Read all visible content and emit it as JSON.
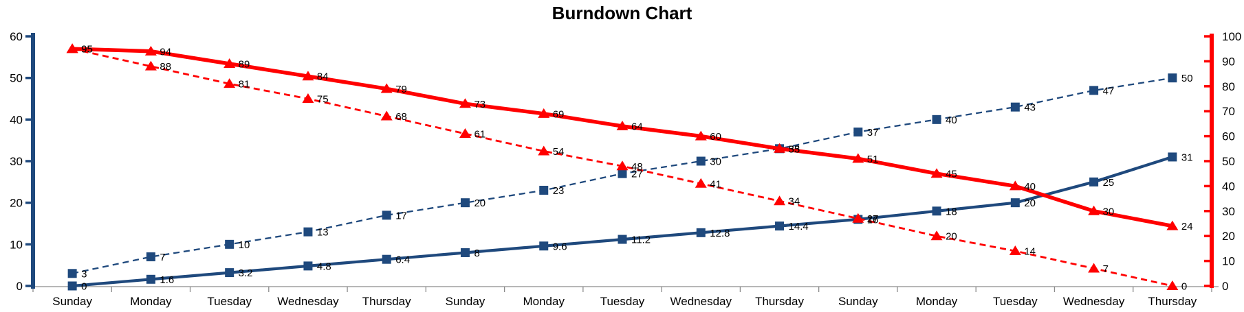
{
  "chart_data": {
    "type": "line",
    "title": "Burndown Chart",
    "categories": [
      "Sunday",
      "Monday",
      "Tuesday",
      "Wednesday",
      "Thursday",
      "Sunday",
      "Monday",
      "Tuesday",
      "Wednesday",
      "Thursday",
      "Sunday",
      "Monday",
      "Tuesday",
      "Wednesday",
      "Thursday"
    ],
    "left_axis": {
      "range": [
        0,
        60
      ],
      "ticks": [
        0,
        10,
        20,
        30,
        40,
        50,
        60
      ],
      "color": "#1F497D"
    },
    "right_axis": {
      "range": [
        0,
        100
      ],
      "ticks": [
        0,
        10,
        20,
        30,
        40,
        50,
        60,
        70,
        80,
        90,
        100
      ],
      "color": "#FF0000"
    },
    "x_axis": {
      "color": "#8C8C8C"
    },
    "label_color": "#000000",
    "grid": false,
    "legend": false,
    "series": [
      {
        "name": "blue-dashed",
        "axis": "left",
        "color": "#1F497D",
        "line": "dashed",
        "marker": "square",
        "values": [
          3,
          7,
          10,
          13,
          17,
          20,
          23,
          27,
          30,
          33,
          37,
          40,
          43,
          47,
          50
        ]
      },
      {
        "name": "blue-solid",
        "axis": "left",
        "color": "#1F497D",
        "line": "solid",
        "marker": "square",
        "values": [
          0,
          1.6,
          3.2,
          4.8,
          6.4,
          8,
          9.6,
          11.2,
          12.8,
          14.4,
          16,
          18,
          20,
          25,
          31
        ]
      },
      {
        "name": "red-dashed",
        "axis": "right",
        "color": "#FF0000",
        "line": "dashed",
        "marker": "triangle",
        "values": [
          95,
          88,
          81,
          75,
          68,
          61,
          54,
          48,
          41,
          34,
          27,
          20,
          14,
          7,
          0
        ]
      },
      {
        "name": "red-solid",
        "axis": "right",
        "color": "#FF0000",
        "line": "solid",
        "marker": "triangle",
        "values": [
          95,
          94,
          89,
          84,
          79,
          73,
          69,
          64,
          60,
          55,
          51,
          45,
          40,
          30,
          24
        ]
      }
    ]
  }
}
